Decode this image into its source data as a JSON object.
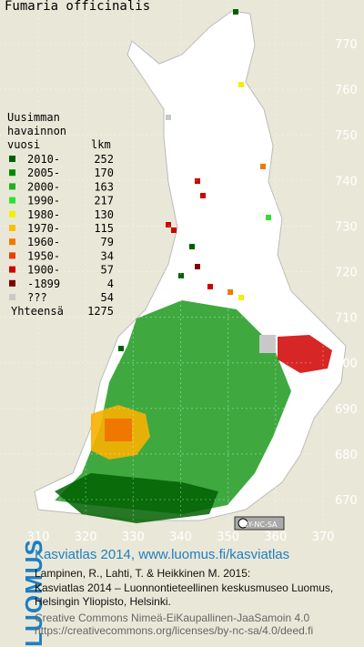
{
  "title": "Fumaria officinalis",
  "legend": {
    "heading_1": "Uusimman",
    "heading_2": "havainnon",
    "col_year": "vuosi",
    "col_count": "lkm",
    "items": [
      {
        "label": "2010-",
        "count": 252,
        "color": "#006000"
      },
      {
        "label": "2005-",
        "count": 170,
        "color": "#008a00"
      },
      {
        "label": "2000-",
        "count": 163,
        "color": "#20b020"
      },
      {
        "label": "1990-",
        "count": 217,
        "color": "#30e030"
      },
      {
        "label": "1980-",
        "count": 130,
        "color": "#f0f000"
      },
      {
        "label": "1970-",
        "count": 115,
        "color": "#f8c000"
      },
      {
        "label": "1960-",
        "count": 79,
        "color": "#f07800"
      },
      {
        "label": "1950-",
        "count": 34,
        "color": "#e84000"
      },
      {
        "label": "1900-",
        "count": 57,
        "color": "#d00000"
      },
      {
        "label": "-1899",
        "count": 4,
        "color": "#800000"
      },
      {
        "label": "???",
        "count": 54,
        "color": "#c8c8c8"
      }
    ],
    "total_label": "Yhteensä",
    "total": 1275
  },
  "y_ticks": [
    770,
    760,
    750,
    740,
    730,
    720,
    710,
    700,
    690,
    680,
    670
  ],
  "x_ticks": [
    310,
    320,
    330,
    340,
    350,
    360,
    370
  ],
  "license_badge": "BY-NC-SA",
  "footer": {
    "logo": "LUOMUS",
    "title": "Kasviatlas 2014, www.luomus.fi/kasviatlas",
    "citation_1": "Lampinen, R., Lahti, T. & Heikkinen M. 2015:",
    "citation_2": "Kasviatlas 2014 – Luonnontieteellinen keskusmuseo Luomus,",
    "citation_3": "Helsingin Yliopisto, Helsinki.",
    "license_1": "Creative Commons Nimeä-EiKaupallinen-JaaSamoin 4.0",
    "license_2": "https://creativecommons.org/licenses/by-nc-sa/4.0/deed.fi"
  }
}
